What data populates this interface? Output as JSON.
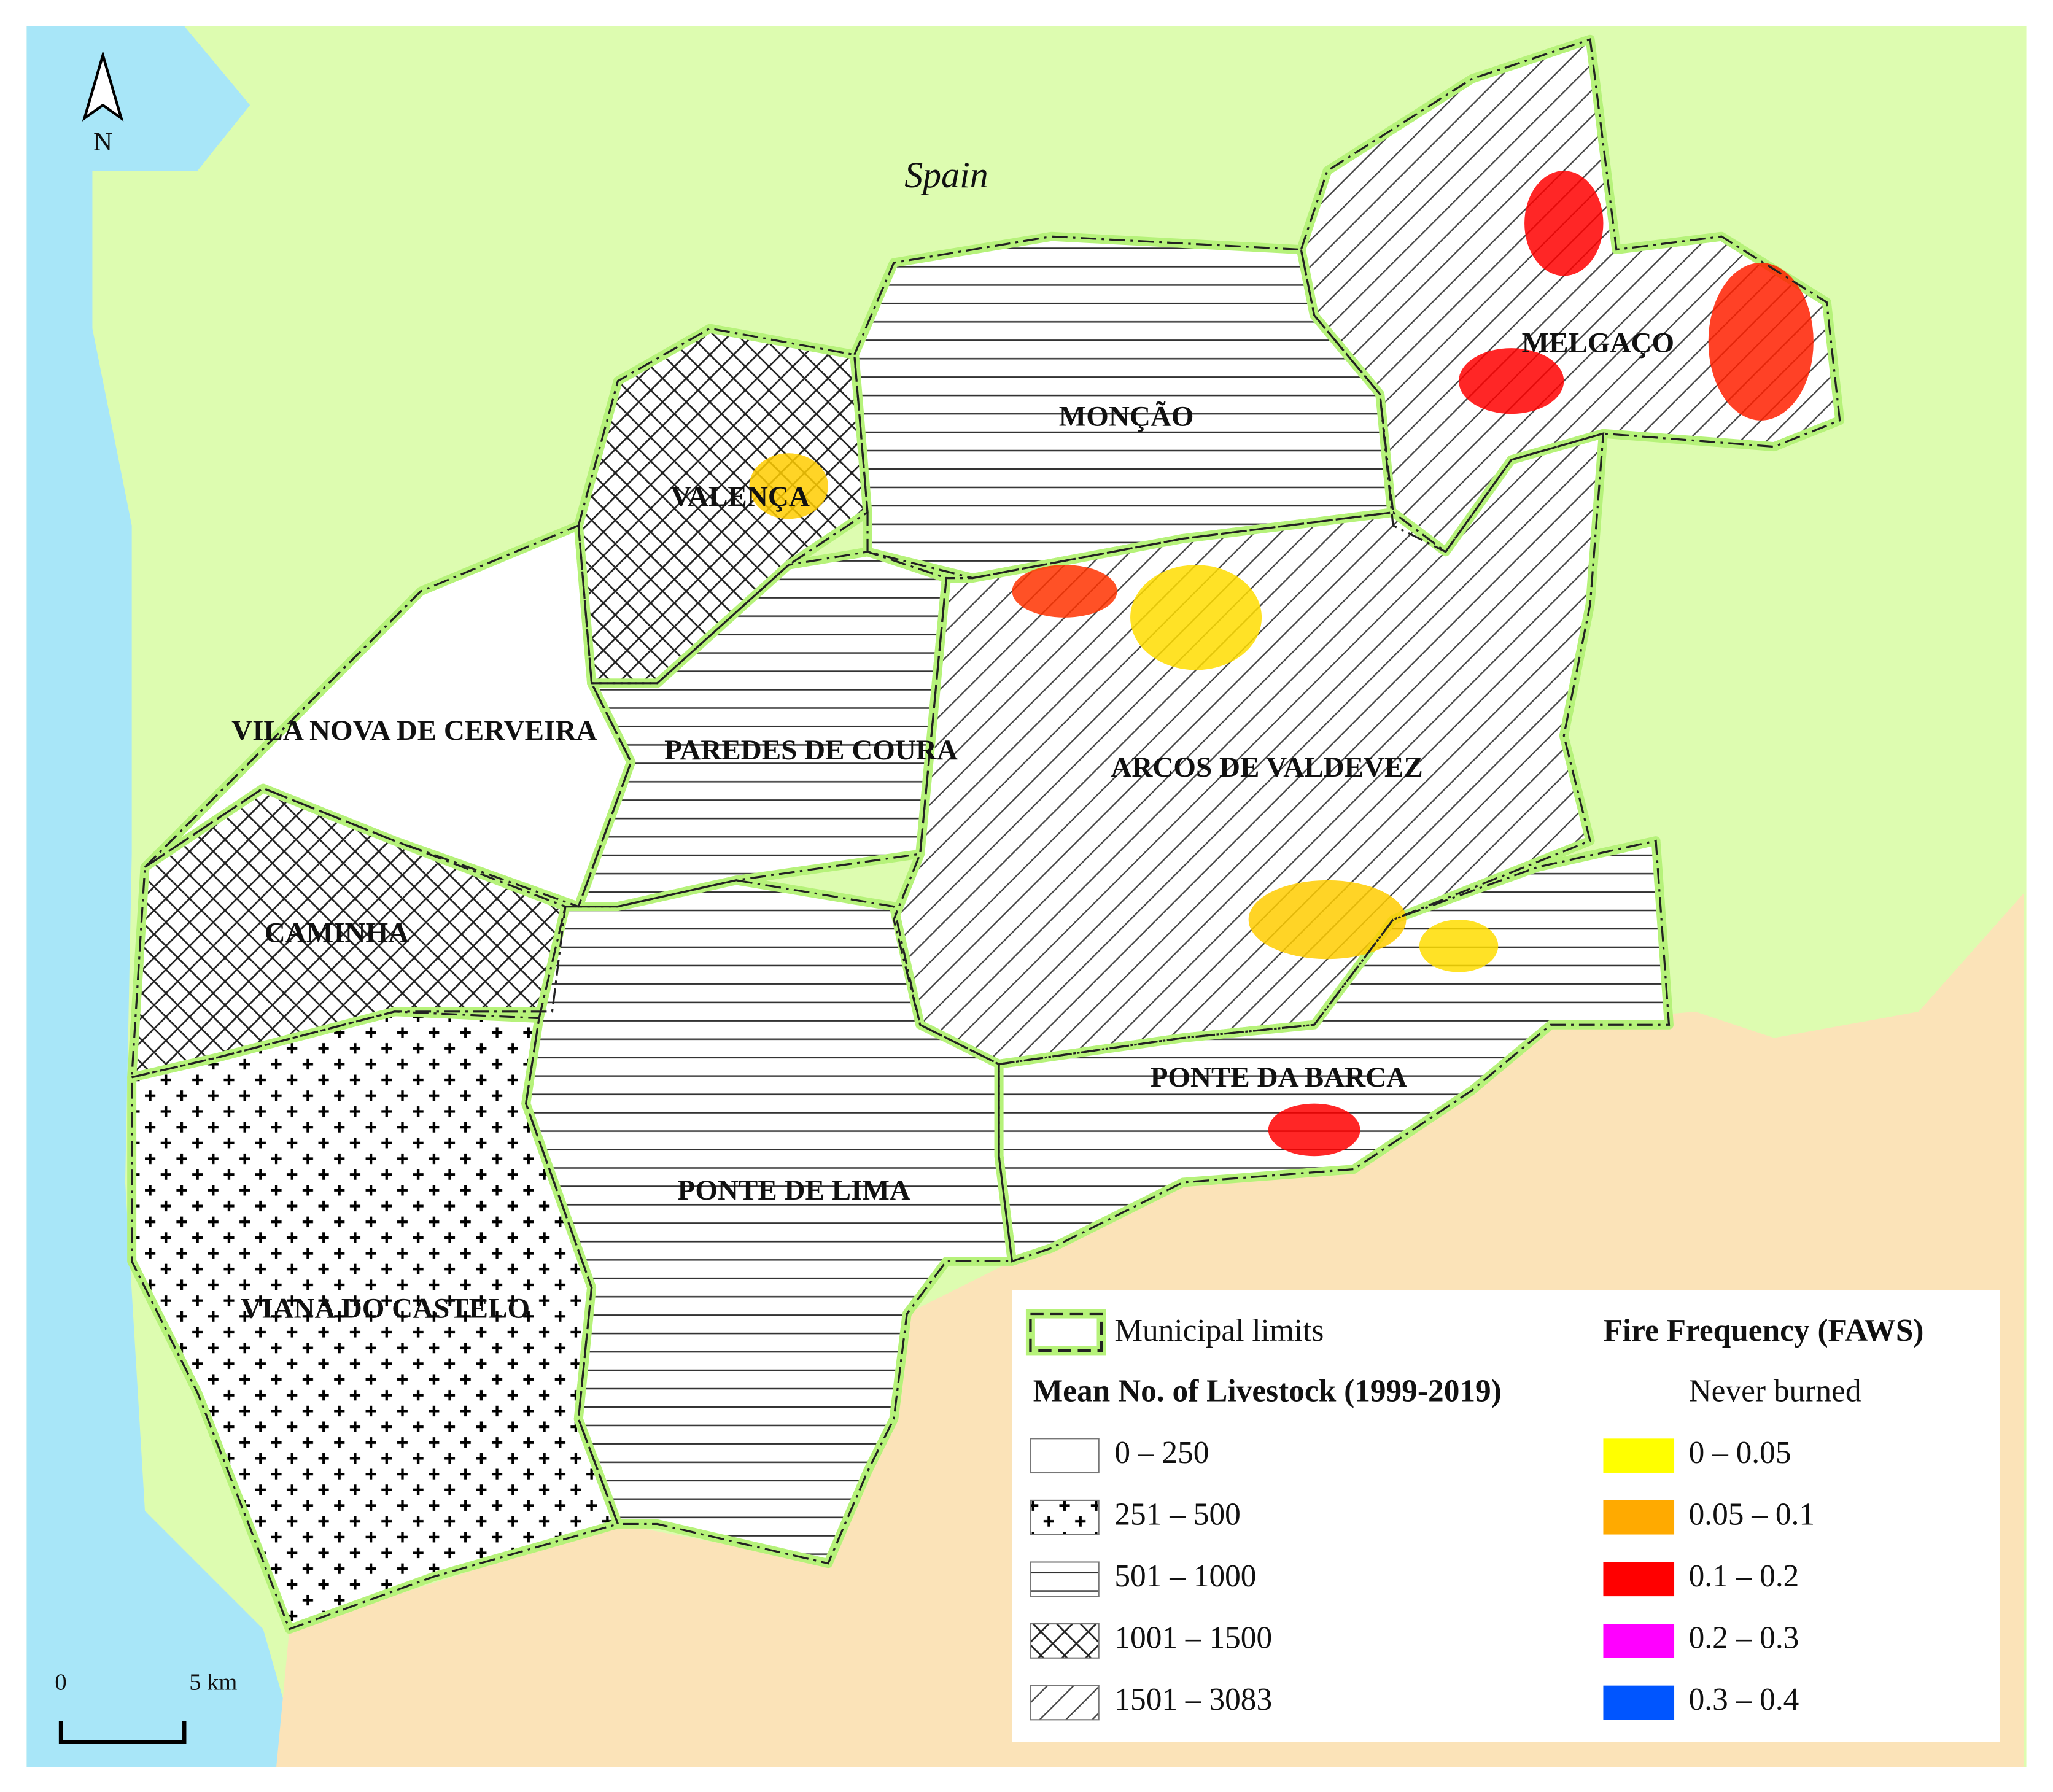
{
  "map": {
    "country_label": "Spain",
    "north": "N",
    "scale": {
      "start": "0",
      "end": "5 km"
    },
    "municipalities": [
      "MELGAÇO",
      "MONÇÃO",
      "VALENÇA",
      "VILA NOVA DE CERVEIRA",
      "PAREDES DE COURA",
      "ARCOS DE VALDEVEZ",
      "CAMINHA",
      "PONTE DA BARCA",
      "PONTE DE LIMA",
      "VIANA DO CASTELO"
    ]
  },
  "legend": {
    "boundary": "Municipal limits",
    "livestock_title": "Mean No. of Livestock (1999-2019)",
    "livestock_classes": [
      {
        "label": "0 – 250",
        "pattern": "none"
      },
      {
        "label": "251 – 500",
        "pattern": "plus"
      },
      {
        "label": "501 – 1000",
        "pattern": "horizontal"
      },
      {
        "label": "1001 – 1500",
        "pattern": "cross"
      },
      {
        "label": "1501 – 3083",
        "pattern": "diagonal"
      }
    ],
    "fire_title": "Fire Frequency (FAWS)",
    "never_burned": "Never burned",
    "fire_classes": [
      {
        "label": "0 – 0.05",
        "color": "#ffff00"
      },
      {
        "label": "0.05 – 0.1",
        "color": "#ffaa00"
      },
      {
        "label": "0.1 – 0.2",
        "color": "#ff0000"
      },
      {
        "label": "0.2 – 0.3",
        "color": "#ff00ff"
      },
      {
        "label": "0.3 – 0.4",
        "color": "#0055ff"
      }
    ]
  }
}
